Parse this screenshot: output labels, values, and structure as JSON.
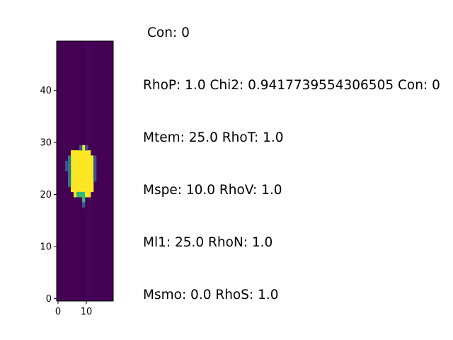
{
  "chart_data": {
    "type": "heatmap",
    "colormap": "viridis",
    "colors": {
      "background": "#440154",
      "low": "#481467",
      "mid": "#2a788e",
      "high": "#fde725"
    },
    "xlim": [
      -0.5,
      19.5
    ],
    "ylim": [
      -0.5,
      49.5
    ],
    "x_ticks": [
      "0",
      "10"
    ],
    "y_ticks": [
      "0",
      "10",
      "20",
      "30",
      "40"
    ],
    "blob": {
      "x_range": [
        5,
        13
      ],
      "y_range": [
        20,
        29
      ],
      "peak_value": 1.0
    },
    "title": "",
    "xlabel": "",
    "ylabel": ""
  },
  "info_lines": [
    "Con: 0",
    "RhoP: 1.0 Chi2: 0.9417739554306505 Con: 0",
    "Mtem: 25.0 RhoT: 1.0",
    "Mspe: 10.0 RhoV: 1.0",
    "Ml1: 25.0 RhoN: 1.0",
    "Msmo: 0.0 RhoS: 1.0"
  ]
}
